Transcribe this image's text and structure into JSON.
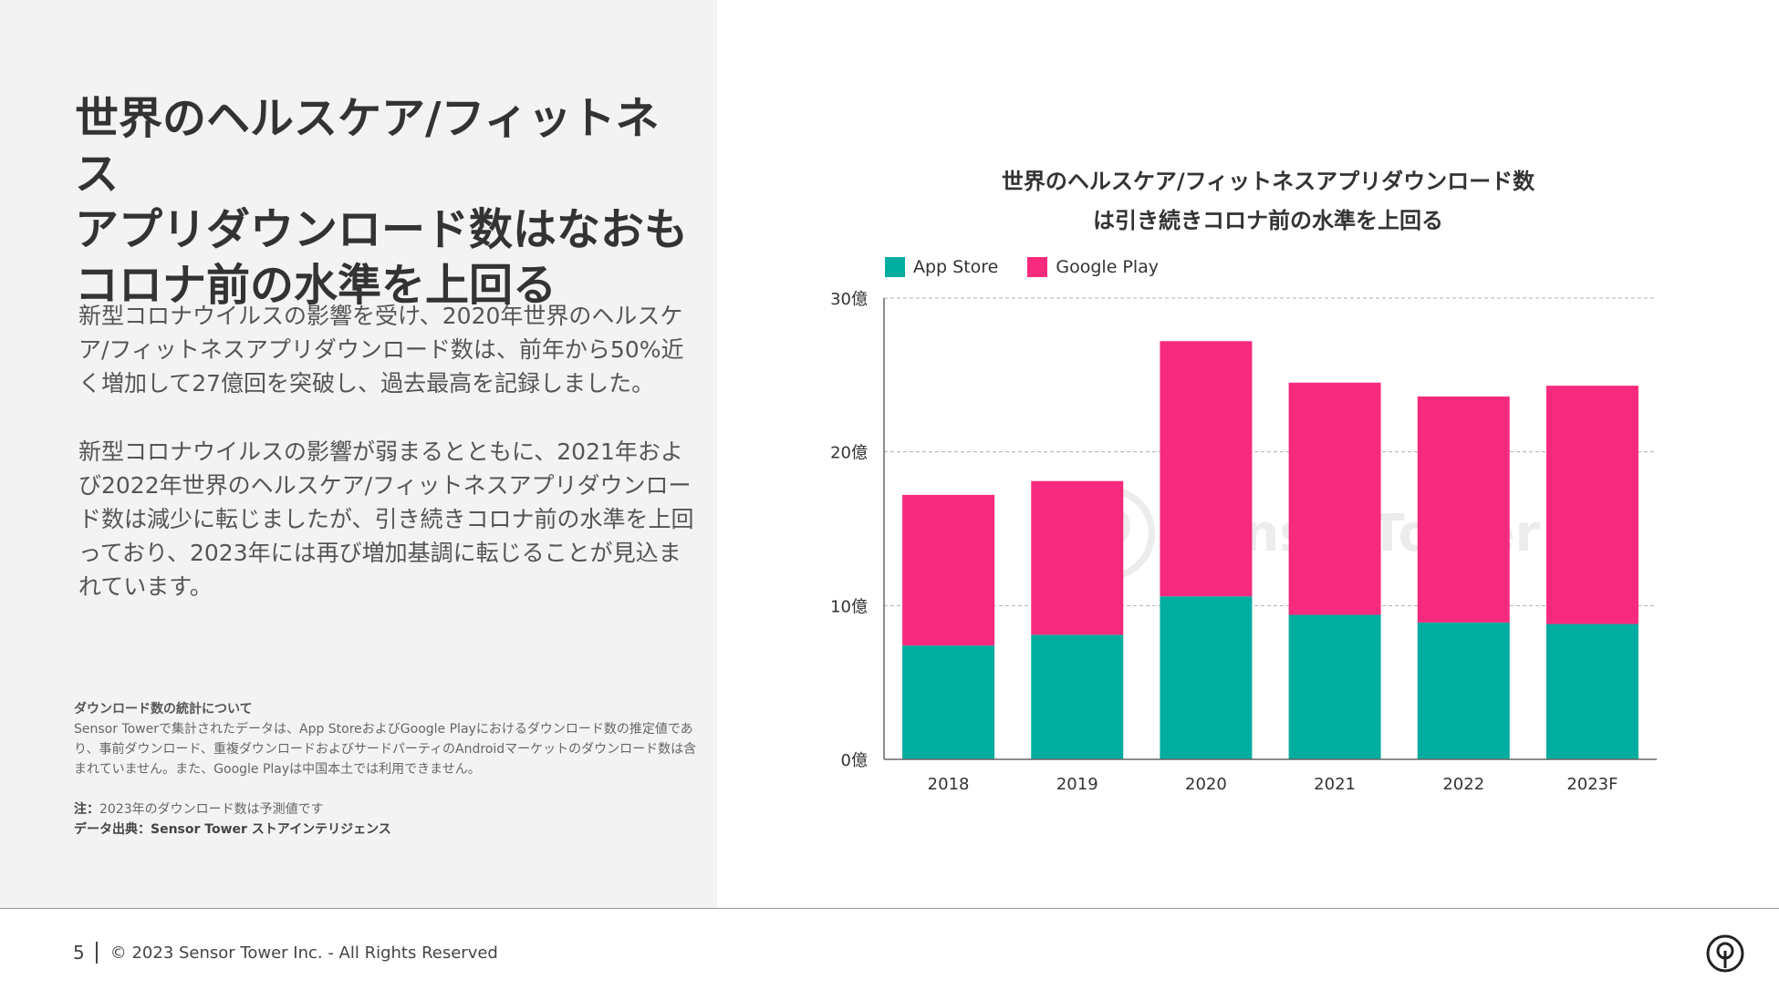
{
  "headline": {
    "line1": "世界のヘルスケア/フィットネス",
    "line2": "アプリダウンロード数はなおも",
    "line3": "コロナ前の水準を上回る"
  },
  "body": {
    "para1": "新型コロナウイルスの影響を受け、2020年世界のヘルスケア/フィットネスアプリダウンロード数は、前年から50%近く増加して27億回を突破し、過去最高を記録しました。",
    "para2": "新型コロナウイルスの影響が弱まるとともに、2021年および2022年世界のヘルスケア/フィットネスアプリダウンロード数は減少に転じましたが、引き続きコロナ前の水準を上回っており、2023年には再び増加基調に転じることが見込まれています。"
  },
  "notes": {
    "stats_title": "ダウンロード数の統計について",
    "stats_body": "Sensor Towerで集計されたデータは、App StoreおよびGoogle Playにおけるダウンロード数の推定値であり、事前ダウンロード、重複ダウンロードおよびサードパーティのAndroidマーケットのダウンロード数は含まれていません。また、Google Playは中国本土では利用できません。",
    "note_label": "注：",
    "note_text": "2023年のダウンロード数は予測値です",
    "source_label": "データ出典：",
    "source_text": "Sensor Tower ストアインテリジェンス"
  },
  "footer": {
    "page_number": "5",
    "copyright": "© 2023 Sensor Tower Inc. - All Rights Reserved"
  },
  "watermark": {
    "text": "SensorTower"
  },
  "icons": {
    "footer_logo": "sensor-tower-logo-icon",
    "watermark_logo": "sensor-tower-logo-icon"
  },
  "chart_data": {
    "type": "bar",
    "stacked": true,
    "title_line1": "世界のヘルスケア/フィットネスアプリダウンロード数",
    "title_line2": "は引き続きコロナ前の水準を上回る",
    "categories": [
      "2018",
      "2019",
      "2020",
      "2021",
      "2022",
      "2023F"
    ],
    "series": [
      {
        "name": "App Store",
        "color": "#00ad9f",
        "values": [
          7.4,
          8.1,
          10.6,
          9.4,
          8.9,
          8.8
        ]
      },
      {
        "name": "Google Play",
        "color": "#f72a7e",
        "values": [
          9.8,
          10.0,
          16.6,
          15.1,
          14.7,
          15.5
        ]
      }
    ],
    "yticks": [
      0,
      10,
      20,
      30
    ],
    "ytick_labels": [
      "0億",
      "10億",
      "20億",
      "30億"
    ],
    "ylim": [
      0,
      30
    ],
    "grid": "horizontal-dashed",
    "legend_position": "top-left"
  }
}
